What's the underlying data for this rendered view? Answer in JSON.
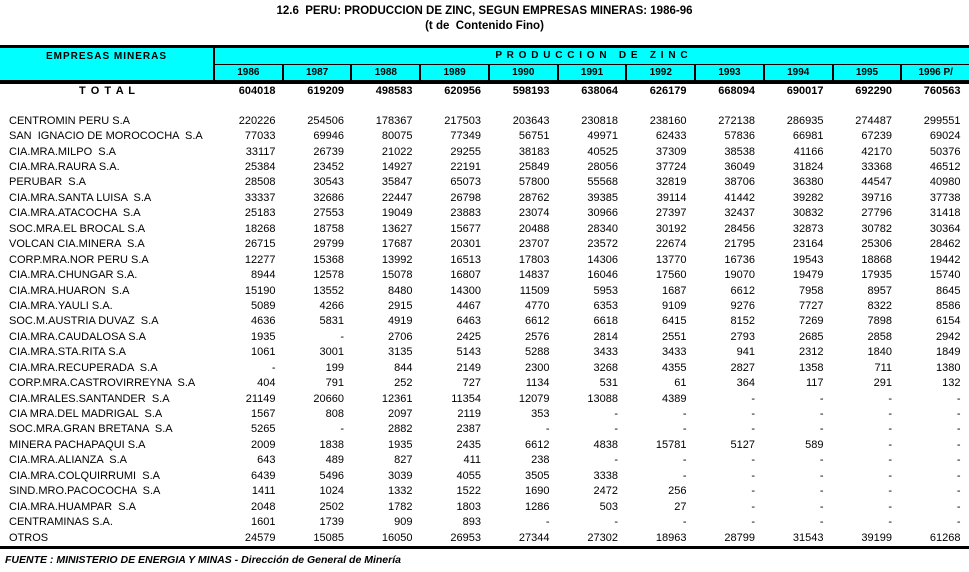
{
  "title": "12.6  PERU: PRODUCCION DE ZINC, SEGUN EMPRESAS MINERAS: 1986-96",
  "subtitle": "(t de  Contenido Fino)",
  "colors": {
    "header_bg": "#00FFFF",
    "border": "#000000"
  },
  "table": {
    "col_header_left": "EMPRESAS MINERAS",
    "col_header_right": "P R O D U C C I O N   D E   Z I N C",
    "years": [
      "1986",
      "1987",
      "1988",
      "1989",
      "1990",
      "1991",
      "1992",
      "1993",
      "1994",
      "1995",
      "1996 P/"
    ],
    "total": {
      "label": "T O T A L",
      "values": [
        "604018",
        "619209",
        "498583",
        "620956",
        "598193",
        "638064",
        "626179",
        "668094",
        "690017",
        "692290",
        "760563"
      ]
    },
    "rows": [
      {
        "name": "CENTROMIN PERU S.A",
        "values": [
          "220226",
          "254506",
          "178367",
          "217503",
          "203643",
          "230818",
          "238160",
          "272138",
          "286935",
          "274487",
          "299551"
        ]
      },
      {
        "name": "SAN  IGNACIO DE MOROCOCHA  S.A",
        "values": [
          "77033",
          "69946",
          "80075",
          "77349",
          "56751",
          "49971",
          "62433",
          "57836",
          "66981",
          "67239",
          "69024"
        ]
      },
      {
        "name": "CIA.MRA.MILPO  S.A",
        "values": [
          "33117",
          "26739",
          "21022",
          "29255",
          "38183",
          "40525",
          "37309",
          "38538",
          "41166",
          "42170",
          "50376"
        ]
      },
      {
        "name": "CIA.MRA.RAURA S.A.",
        "values": [
          "25384",
          "23452",
          "14927",
          "22191",
          "25849",
          "28056",
          "37724",
          "36049",
          "31824",
          "33368",
          "46512"
        ]
      },
      {
        "name": "PERUBAR  S.A",
        "values": [
          "28508",
          "30543",
          "35847",
          "65073",
          "57800",
          "55568",
          "32819",
          "38706",
          "36380",
          "44547",
          "40980"
        ]
      },
      {
        "name": "CIA.MRA.SANTA LUISA  S.A",
        "values": [
          "33337",
          "32686",
          "22447",
          "26798",
          "28762",
          "39385",
          "39114",
          "41442",
          "39282",
          "39716",
          "37738"
        ]
      },
      {
        "name": "CIA.MRA.ATACOCHA  S.A",
        "values": [
          "25183",
          "27553",
          "19049",
          "23883",
          "23074",
          "30966",
          "27397",
          "32437",
          "30832",
          "27796",
          "31418"
        ]
      },
      {
        "name": "SOC.MRA.EL BROCAL S.A",
        "values": [
          "18268",
          "18758",
          "13627",
          "15677",
          "20488",
          "28340",
          "30192",
          "28456",
          "32873",
          "30782",
          "30364"
        ]
      },
      {
        "name": "VOLCAN CIA.MINERA  S.A",
        "values": [
          "26715",
          "29799",
          "17687",
          "20301",
          "23707",
          "23572",
          "22674",
          "21795",
          "23164",
          "25306",
          "28462"
        ]
      },
      {
        "name": "CORP.MRA.NOR PERU S.A",
        "values": [
          "12277",
          "15368",
          "13992",
          "16513",
          "17803",
          "14306",
          "13770",
          "16736",
          "19543",
          "18868",
          "19442"
        ]
      },
      {
        "name": "CIA.MRA.CHUNGAR S.A.",
        "values": [
          "8944",
          "12578",
          "15078",
          "16807",
          "14837",
          "16046",
          "17560",
          "19070",
          "19479",
          "17935",
          "15740"
        ]
      },
      {
        "name": "CIA.MRA.HUARON  S.A",
        "values": [
          "15190",
          "13552",
          "8480",
          "14300",
          "11509",
          "5953",
          "1687",
          "6612",
          "7958",
          "8957",
          "8645"
        ]
      },
      {
        "name": "CIA.MRA.YAULI S.A.",
        "values": [
          "5089",
          "4266",
          "2915",
          "4467",
          "4770",
          "6353",
          "9109",
          "9276",
          "7727",
          "8322",
          "8586"
        ]
      },
      {
        "name": "SOC.M.AUSTRIA DUVAZ  S.A",
        "values": [
          "4636",
          "5831",
          "4919",
          "6463",
          "6612",
          "6618",
          "6415",
          "8152",
          "7269",
          "7898",
          "6154"
        ]
      },
      {
        "name": "CIA.MRA.CAUDALOSA S.A",
        "values": [
          "1935",
          "-",
          "2706",
          "2425",
          "2576",
          "2814",
          "2551",
          "2793",
          "2685",
          "2858",
          "2942"
        ]
      },
      {
        "name": "CIA.MRA.STA.RITA S.A",
        "values": [
          "1061",
          "3001",
          "3135",
          "5143",
          "5288",
          "3433",
          "3433",
          "941",
          "2312",
          "1840",
          "1849"
        ]
      },
      {
        "name": "CIA.MRA.RECUPERADA  S.A",
        "values": [
          "-",
          "199",
          "844",
          "2149",
          "2300",
          "3268",
          "4355",
          "2827",
          "1358",
          "711",
          "1380"
        ]
      },
      {
        "name": "CORP.MRA.CASTROVIRREYNA  S.A",
        "values": [
          "404",
          "791",
          "252",
          "727",
          "1134",
          "531",
          "61",
          "364",
          "117",
          "291",
          "132"
        ]
      },
      {
        "name": "CIA.MRALES.SANTANDER  S.A",
        "values": [
          "21149",
          "20660",
          "12361",
          "11354",
          "12079",
          "13088",
          "4389",
          "-",
          "-",
          "-",
          "-"
        ]
      },
      {
        "name": "CIA MRA.DEL MADRIGAL  S.A",
        "values": [
          "1567",
          "808",
          "2097",
          "2119",
          "353",
          "-",
          "-",
          "-",
          "-",
          "-",
          "-"
        ]
      },
      {
        "name": "SOC.MRA.GRAN BRETANA  S.A",
        "values": [
          "5265",
          "-",
          "2882",
          "2387",
          "-",
          "-",
          "-",
          "-",
          "-",
          "-",
          "-"
        ]
      },
      {
        "name": "MINERA PACHAPAQUI S.A",
        "values": [
          "2009",
          "1838",
          "1935",
          "2435",
          "6612",
          "4838",
          "15781",
          "5127",
          "589",
          "-",
          "-"
        ]
      },
      {
        "name": "CIA.MRA.ALIANZA  S.A",
        "values": [
          "643",
          "489",
          "827",
          "411",
          "238",
          "-",
          "-",
          "-",
          "-",
          "-",
          "-"
        ]
      },
      {
        "name": "CIA.MRA.COLQUIRRUMI  S.A",
        "values": [
          "6439",
          "5496",
          "3039",
          "4055",
          "3505",
          "3338",
          "-",
          "-",
          "-",
          "-",
          "-"
        ]
      },
      {
        "name": "SIND.MRO.PACOCOCHA  S.A",
        "values": [
          "1411",
          "1024",
          "1332",
          "1522",
          "1690",
          "2472",
          "256",
          "-",
          "-",
          "-",
          "-"
        ]
      },
      {
        "name": "CIA.MRA.HUAMPAR  S.A",
        "values": [
          "2048",
          "2502",
          "1782",
          "1803",
          "1286",
          "503",
          "27",
          "-",
          "-",
          "-",
          "-"
        ]
      },
      {
        "name": "CENTRAMINAS S.A.",
        "values": [
          "1601",
          "1739",
          "909",
          "893",
          "-",
          "-",
          "-",
          "-",
          "-",
          "-",
          "-"
        ]
      },
      {
        "name": "OTROS",
        "values": [
          "24579",
          "15085",
          "16050",
          "26953",
          "27344",
          "27302",
          "18963",
          "28799",
          "31543",
          "39199",
          "61268"
        ]
      }
    ]
  },
  "source": "FUENTE : MINISTERIO DE ENERGIA Y MINAS - Dirección de General de Minería"
}
